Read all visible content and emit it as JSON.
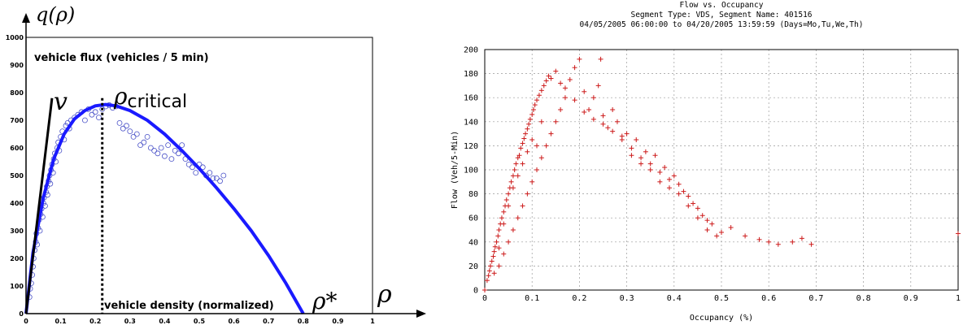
{
  "chart_data": [
    {
      "type": "scatter",
      "title": "",
      "ylabel_math": "q(ρ)",
      "xlabel_math": "ρ",
      "annotations": {
        "vehicle_flux": "vehicle flux (vehicles / 5 min)",
        "vehicle_density": "vehicle density (normalized)",
        "free_flow_speed": "v",
        "critical_density": "ρ",
        "critical_density_sub": "critical",
        "jam_density": "ρ*"
      },
      "xlim": [
        0,
        1
      ],
      "ylim": [
        0,
        1000
      ],
      "x_ticks": [
        "0",
        "0.1",
        "0.2",
        "0.3",
        "0.4",
        "0.5",
        "0.6",
        "0.7",
        "0.8",
        "0.9",
        "1"
      ],
      "y_ticks": [
        "0",
        "100",
        "200",
        "300",
        "400",
        "500",
        "600",
        "700",
        "800",
        "900",
        "1000"
      ],
      "grid": false,
      "critical_x": 0.22,
      "tangent_line": [
        [
          0,
          0
        ],
        [
          0.075,
          780
        ]
      ],
      "fit_curve": [
        [
          0,
          0
        ],
        [
          0.02,
          220
        ],
        [
          0.05,
          420
        ],
        [
          0.08,
          560
        ],
        [
          0.11,
          650
        ],
        [
          0.14,
          705
        ],
        [
          0.17,
          735
        ],
        [
          0.2,
          752
        ],
        [
          0.23,
          757
        ],
        [
          0.26,
          752
        ],
        [
          0.3,
          735
        ],
        [
          0.35,
          700
        ],
        [
          0.4,
          650
        ],
        [
          0.45,
          590
        ],
        [
          0.5,
          525
        ],
        [
          0.55,
          455
        ],
        [
          0.6,
          380
        ],
        [
          0.65,
          300
        ],
        [
          0.7,
          210
        ],
        [
          0.75,
          110
        ],
        [
          0.8,
          0
        ]
      ],
      "points": [
        [
          0.01,
          60
        ],
        [
          0.012,
          90
        ],
        [
          0.015,
          110
        ],
        [
          0.018,
          140
        ],
        [
          0.02,
          170
        ],
        [
          0.022,
          200
        ],
        [
          0.025,
          230
        ],
        [
          0.028,
          260
        ],
        [
          0.03,
          290
        ],
        [
          0.032,
          250
        ],
        [
          0.035,
          310
        ],
        [
          0.038,
          340
        ],
        [
          0.04,
          300
        ],
        [
          0.042,
          360
        ],
        [
          0.045,
          380
        ],
        [
          0.048,
          350
        ],
        [
          0.05,
          400
        ],
        [
          0.052,
          420
        ],
        [
          0.055,
          390
        ],
        [
          0.058,
          440
        ],
        [
          0.06,
          460
        ],
        [
          0.062,
          430
        ],
        [
          0.065,
          480
        ],
        [
          0.068,
          500
        ],
        [
          0.07,
          470
        ],
        [
          0.072,
          520
        ],
        [
          0.075,
          540
        ],
        [
          0.078,
          510
        ],
        [
          0.08,
          560
        ],
        [
          0.083,
          580
        ],
        [
          0.086,
          550
        ],
        [
          0.09,
          600
        ],
        [
          0.093,
          620
        ],
        [
          0.096,
          590
        ],
        [
          0.1,
          640
        ],
        [
          0.105,
          660
        ],
        [
          0.11,
          630
        ],
        [
          0.115,
          680
        ],
        [
          0.12,
          690
        ],
        [
          0.125,
          670
        ],
        [
          0.13,
          700
        ],
        [
          0.14,
          710
        ],
        [
          0.15,
          720
        ],
        [
          0.16,
          730
        ],
        [
          0.17,
          700
        ],
        [
          0.18,
          740
        ],
        [
          0.19,
          720
        ],
        [
          0.2,
          730
        ],
        [
          0.21,
          710
        ],
        [
          0.22,
          740
        ],
        [
          0.23,
          750
        ],
        [
          0.24,
          755
        ],
        [
          0.25,
          745
        ],
        [
          0.26,
          750
        ],
        [
          0.27,
          690
        ],
        [
          0.28,
          670
        ],
        [
          0.29,
          680
        ],
        [
          0.3,
          660
        ],
        [
          0.31,
          640
        ],
        [
          0.32,
          650
        ],
        [
          0.33,
          610
        ],
        [
          0.34,
          620
        ],
        [
          0.35,
          640
        ],
        [
          0.36,
          600
        ],
        [
          0.37,
          590
        ],
        [
          0.38,
          580
        ],
        [
          0.39,
          600
        ],
        [
          0.4,
          570
        ],
        [
          0.41,
          610
        ],
        [
          0.42,
          560
        ],
        [
          0.43,
          590
        ],
        [
          0.44,
          580
        ],
        [
          0.45,
          610
        ],
        [
          0.46,
          560
        ],
        [
          0.47,
          540
        ],
        [
          0.48,
          530
        ],
        [
          0.49,
          510
        ],
        [
          0.5,
          540
        ],
        [
          0.51,
          530
        ],
        [
          0.52,
          500
        ],
        [
          0.53,
          510
        ],
        [
          0.54,
          490
        ],
        [
          0.55,
          490
        ],
        [
          0.56,
          480
        ],
        [
          0.57,
          500
        ]
      ],
      "colors": {
        "curve": "#1a1aff",
        "points": "#4a52c8",
        "tangent": "#000000",
        "dashed": "#000000"
      }
    },
    {
      "type": "scatter",
      "title": "Flow vs. Occupancy",
      "subtitle_1": "Segment Type: VDS, Segment Name: 401516",
      "subtitle_2": "04/05/2005 06:00:00 to 04/20/2005 13:59:59 (Days=Mo,Tu,We,Th)",
      "xlabel": "Occupancy (%)",
      "ylabel": "Flow (Veh/5-Min)",
      "xlim": [
        0,
        1
      ],
      "ylim": [
        0,
        200
      ],
      "x_ticks": [
        "0",
        "0.1",
        "0.2",
        "0.3",
        "0.4",
        "0.5",
        "0.6",
        "0.7",
        "0.8",
        "0.9",
        "1"
      ],
      "y_ticks": [
        "0",
        "20",
        "40",
        "60",
        "80",
        "100",
        "120",
        "140",
        "160",
        "180",
        "200"
      ],
      "grid": true,
      "points": [
        [
          0,
          0
        ],
        [
          0.005,
          8
        ],
        [
          0.008,
          12
        ],
        [
          0.01,
          16
        ],
        [
          0.012,
          20
        ],
        [
          0.015,
          24
        ],
        [
          0.018,
          28
        ],
        [
          0.02,
          32
        ],
        [
          0.022,
          36
        ],
        [
          0.025,
          40
        ],
        [
          0.028,
          45
        ],
        [
          0.03,
          50
        ],
        [
          0.033,
          55
        ],
        [
          0.036,
          60
        ],
        [
          0.04,
          65
        ],
        [
          0.043,
          70
        ],
        [
          0.046,
          75
        ],
        [
          0.05,
          80
        ],
        [
          0.053,
          85
        ],
        [
          0.056,
          90
        ],
        [
          0.06,
          95
        ],
        [
          0.063,
          100
        ],
        [
          0.066,
          105
        ],
        [
          0.07,
          110
        ],
        [
          0.073,
          112
        ],
        [
          0.076,
          118
        ],
        [
          0.08,
          122
        ],
        [
          0.083,
          126
        ],
        [
          0.086,
          130
        ],
        [
          0.09,
          134
        ],
        [
          0.093,
          138
        ],
        [
          0.096,
          142
        ],
        [
          0.1,
          146
        ],
        [
          0.103,
          150
        ],
        [
          0.106,
          154
        ],
        [
          0.11,
          158
        ],
        [
          0.115,
          162
        ],
        [
          0.12,
          166
        ],
        [
          0.125,
          170
        ],
        [
          0.13,
          174
        ],
        [
          0.135,
          178
        ],
        [
          0.14,
          176
        ],
        [
          0.15,
          182
        ],
        [
          0.16,
          172
        ],
        [
          0.17,
          168
        ],
        [
          0.18,
          175
        ],
        [
          0.19,
          185
        ],
        [
          0.2,
          192
        ],
        [
          0.21,
          165
        ],
        [
          0.22,
          150
        ],
        [
          0.23,
          160
        ],
        [
          0.24,
          170
        ],
        [
          0.245,
          192
        ],
        [
          0.25,
          145
        ],
        [
          0.26,
          135
        ],
        [
          0.27,
          150
        ],
        [
          0.28,
          140
        ],
        [
          0.29,
          128
        ],
        [
          0.3,
          130
        ],
        [
          0.31,
          118
        ],
        [
          0.32,
          125
        ],
        [
          0.33,
          110
        ],
        [
          0.34,
          115
        ],
        [
          0.35,
          105
        ],
        [
          0.36,
          112
        ],
        [
          0.37,
          98
        ],
        [
          0.38,
          102
        ],
        [
          0.39,
          92
        ],
        [
          0.4,
          95
        ],
        [
          0.41,
          88
        ],
        [
          0.42,
          82
        ],
        [
          0.43,
          78
        ],
        [
          0.44,
          72
        ],
        [
          0.45,
          68
        ],
        [
          0.46,
          62
        ],
        [
          0.47,
          58
        ],
        [
          0.48,
          55
        ],
        [
          0.5,
          48
        ],
        [
          0.52,
          52
        ],
        [
          0.55,
          45
        ],
        [
          0.58,
          42
        ],
        [
          0.6,
          40
        ],
        [
          0.62,
          38
        ],
        [
          0.65,
          40
        ],
        [
          0.67,
          43
        ],
        [
          0.69,
          38
        ],
        [
          1,
          47
        ],
        [
          0.02,
          14
        ],
        [
          0.03,
          20
        ],
        [
          0.04,
          30
        ],
        [
          0.05,
          40
        ],
        [
          0.06,
          50
        ],
        [
          0.07,
          60
        ],
        [
          0.08,
          70
        ],
        [
          0.09,
          80
        ],
        [
          0.1,
          90
        ],
        [
          0.11,
          100
        ],
        [
          0.12,
          110
        ],
        [
          0.13,
          120
        ],
        [
          0.14,
          130
        ],
        [
          0.15,
          140
        ],
        [
          0.16,
          150
        ],
        [
          0.17,
          160
        ],
        [
          0.19,
          158
        ],
        [
          0.21,
          148
        ],
        [
          0.23,
          142
        ],
        [
          0.25,
          138
        ],
        [
          0.27,
          132
        ],
        [
          0.29,
          125
        ],
        [
          0.31,
          112
        ],
        [
          0.33,
          105
        ],
        [
          0.35,
          100
        ],
        [
          0.37,
          90
        ],
        [
          0.39,
          85
        ],
        [
          0.41,
          80
        ],
        [
          0.43,
          70
        ],
        [
          0.45,
          60
        ],
        [
          0.47,
          50
        ],
        [
          0.49,
          45
        ],
        [
          0.12,
          140
        ],
        [
          0.11,
          120
        ],
        [
          0.1,
          125
        ],
        [
          0.09,
          115
        ],
        [
          0.08,
          105
        ],
        [
          0.07,
          95
        ],
        [
          0.06,
          85
        ],
        [
          0.05,
          70
        ],
        [
          0.04,
          55
        ],
        [
          0.03,
          35
        ]
      ],
      "colors": {
        "points": "#cc1a1a",
        "grid": "#999999"
      }
    }
  ]
}
